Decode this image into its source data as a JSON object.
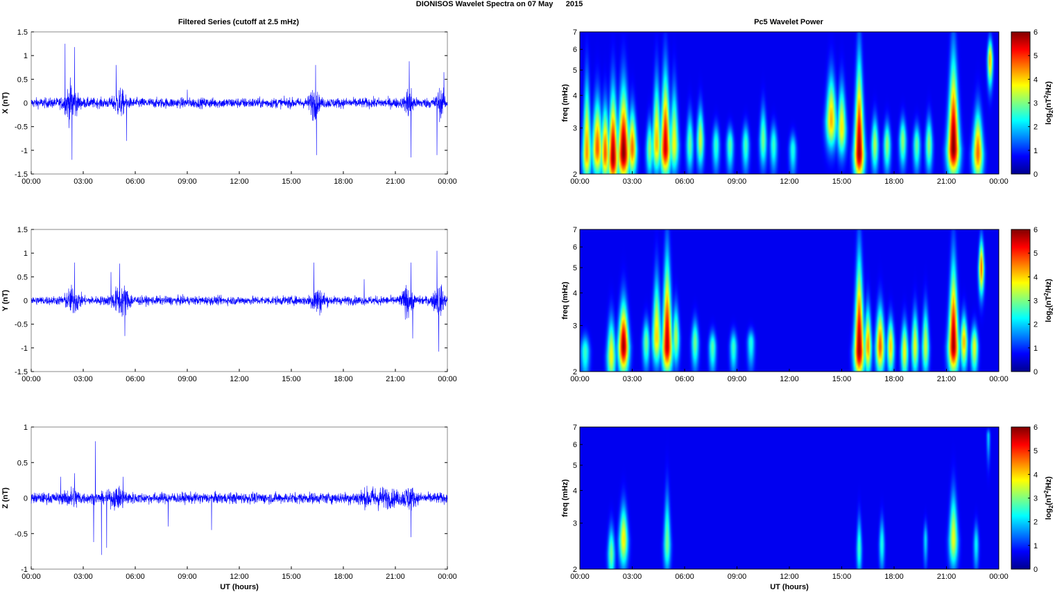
{
  "figure": {
    "suptitle": "DIONISOS Wavelet Spectra on 07 May      2015",
    "left_title": "Filtered Series (cutoff at 2.5 mHz)",
    "right_title": "Pc5 Wavelet Power",
    "xlabel": "UT (hours)"
  },
  "colors": {
    "trace": "#0000ff",
    "axes": "#888888",
    "background": "#ffffff",
    "spectrum_background": "#00008f"
  },
  "colormap": "jet",
  "chart_data": [
    {
      "type": "line",
      "panel": "X",
      "ylabel": "X (nT)",
      "ylim": [
        -1.5,
        1.5
      ],
      "yticks": [
        "1.5",
        "1",
        "0.5",
        "0",
        "-0.5",
        "-1",
        "-1.5"
      ],
      "x_ticks": [
        "00:00",
        "03:00",
        "06:00",
        "09:00",
        "12:00",
        "15:00",
        "18:00",
        "21:00",
        "00:00"
      ],
      "x_range_hours": [
        0,
        24
      ],
      "series": [
        {
          "noise_amplitude_nT": 0.14,
          "bursts": [
            {
              "t": 2.3,
              "width": 0.35,
              "amp": 0.45
            },
            {
              "t": 5.1,
              "width": 0.3,
              "amp": 0.3
            },
            {
              "t": 16.3,
              "width": 0.25,
              "amp": 0.35
            },
            {
              "t": 21.8,
              "width": 0.2,
              "amp": 0.45
            },
            {
              "t": 23.6,
              "width": 0.25,
              "amp": 0.3
            }
          ],
          "spikes": [
            {
              "t": 1.95,
              "v": 1.25
            },
            {
              "t": 2.5,
              "v": 1.18
            },
            {
              "t": 2.35,
              "v": -1.2
            },
            {
              "t": 4.9,
              "v": 0.8
            },
            {
              "t": 5.5,
              "v": -0.8
            },
            {
              "t": 16.4,
              "v": 0.8
            },
            {
              "t": 16.45,
              "v": -1.1
            },
            {
              "t": 21.8,
              "v": 0.88
            },
            {
              "t": 21.9,
              "v": -1.15
            },
            {
              "t": 23.4,
              "v": -1.1
            },
            {
              "t": 23.8,
              "v": 0.65
            },
            {
              "t": 9.0,
              "v": 0.28
            }
          ]
        }
      ]
    },
    {
      "type": "heatmap",
      "panel": "X",
      "ylabel": "freq (mHz)",
      "yscale": "log",
      "ylim": [
        2,
        7
      ],
      "yticks": [
        "7",
        "6",
        "5",
        "4",
        "3",
        "2"
      ],
      "x_ticks": [
        "00:00",
        "03:00",
        "06:00",
        "09:00",
        "12:00",
        "15:00",
        "18:00",
        "21:00",
        "00:00"
      ],
      "colorbar": {
        "label": "log2(nT^2/Hz)",
        "ticks": [
          "6",
          "5",
          "4",
          "3",
          "2",
          "1",
          "0"
        ],
        "range": [
          0,
          6
        ]
      },
      "blobs": [
        {
          "t": 0.4,
          "f": 2.4,
          "dt": 0.25,
          "top": 5.5,
          "v": 4.2
        },
        {
          "t": 1.0,
          "f": 2.5,
          "dt": 0.3,
          "top": 4.5,
          "v": 4.6
        },
        {
          "t": 1.45,
          "f": 2.4,
          "dt": 0.25,
          "top": 4.2,
          "v": 4.6
        },
        {
          "t": 1.9,
          "f": 2.3,
          "dt": 0.3,
          "top": 5.0,
          "v": 5.8
        },
        {
          "t": 2.5,
          "f": 2.4,
          "dt": 0.35,
          "top": 5.2,
          "v": 6.0
        },
        {
          "t": 3.0,
          "f": 2.5,
          "dt": 0.25,
          "top": 4.0,
          "v": 4.5
        },
        {
          "t": 4.0,
          "f": 2.5,
          "dt": 0.2,
          "top": 3.5,
          "v": 2.8
        },
        {
          "t": 4.4,
          "f": 2.6,
          "dt": 0.25,
          "top": 5.5,
          "v": 4.0
        },
        {
          "t": 4.9,
          "f": 2.5,
          "dt": 0.3,
          "top": 6.0,
          "v": 5.5
        },
        {
          "t": 5.4,
          "f": 2.6,
          "dt": 0.25,
          "top": 5.0,
          "v": 3.5
        },
        {
          "t": 6.3,
          "f": 2.6,
          "dt": 0.2,
          "top": 3.8,
          "v": 2.5
        },
        {
          "t": 6.9,
          "f": 2.7,
          "dt": 0.2,
          "top": 4.0,
          "v": 3.2
        },
        {
          "t": 7.8,
          "f": 2.6,
          "dt": 0.2,
          "top": 3.3,
          "v": 2.2
        },
        {
          "t": 8.6,
          "f": 2.6,
          "dt": 0.2,
          "top": 3.2,
          "v": 2.4
        },
        {
          "t": 9.5,
          "f": 2.6,
          "dt": 0.2,
          "top": 3.3,
          "v": 2.3
        },
        {
          "t": 10.5,
          "f": 2.7,
          "dt": 0.2,
          "top": 4.0,
          "v": 2.6
        },
        {
          "t": 11.1,
          "f": 2.6,
          "dt": 0.2,
          "top": 3.3,
          "v": 2.2
        },
        {
          "t": 12.2,
          "f": 2.5,
          "dt": 0.2,
          "top": 3.0,
          "v": 2.0
        },
        {
          "t": 14.4,
          "f": 3.2,
          "dt": 0.3,
          "top": 5.5,
          "v": 4.0
        },
        {
          "t": 15.0,
          "f": 3.0,
          "dt": 0.25,
          "top": 5.0,
          "v": 3.6
        },
        {
          "t": 16.0,
          "f": 2.4,
          "dt": 0.3,
          "top": 7.0,
          "v": 5.8
        },
        {
          "t": 16.9,
          "f": 2.6,
          "dt": 0.2,
          "top": 3.6,
          "v": 3.0
        },
        {
          "t": 17.6,
          "f": 2.6,
          "dt": 0.2,
          "top": 3.4,
          "v": 2.8
        },
        {
          "t": 18.5,
          "f": 2.7,
          "dt": 0.2,
          "top": 3.5,
          "v": 2.8
        },
        {
          "t": 19.3,
          "f": 2.6,
          "dt": 0.2,
          "top": 3.3,
          "v": 2.5
        },
        {
          "t": 20.0,
          "f": 2.6,
          "dt": 0.2,
          "top": 3.6,
          "v": 2.8
        },
        {
          "t": 21.4,
          "f": 2.5,
          "dt": 0.35,
          "top": 7.0,
          "v": 6.0
        },
        {
          "t": 22.8,
          "f": 2.4,
          "dt": 0.3,
          "top": 4.0,
          "v": 4.5
        },
        {
          "t": 23.5,
          "f": 5.5,
          "dt": 0.15,
          "top": 7.0,
          "v": 4.0
        }
      ]
    },
    {
      "type": "line",
      "panel": "Y",
      "ylabel": "Y (nT)",
      "ylim": [
        -1.5,
        1.5
      ],
      "yticks": [
        "1.5",
        "1",
        "0.5",
        "0",
        "-0.5",
        "-1",
        "-1.5"
      ],
      "x_ticks": [
        "00:00",
        "03:00",
        "06:00",
        "09:00",
        "12:00",
        "15:00",
        "18:00",
        "21:00",
        "00:00"
      ],
      "x_range_hours": [
        0,
        24
      ],
      "series": [
        {
          "noise_amplitude_nT": 0.12,
          "bursts": [
            {
              "t": 2.4,
              "width": 0.4,
              "amp": 0.3
            },
            {
              "t": 5.2,
              "width": 0.5,
              "amp": 0.35
            },
            {
              "t": 16.5,
              "width": 0.4,
              "amp": 0.3
            },
            {
              "t": 21.7,
              "width": 0.3,
              "amp": 0.35
            },
            {
              "t": 23.5,
              "width": 0.3,
              "amp": 0.35
            }
          ],
          "spikes": [
            {
              "t": 2.5,
              "v": 0.8
            },
            {
              "t": 5.1,
              "v": 0.78
            },
            {
              "t": 5.4,
              "v": -0.75
            },
            {
              "t": 16.3,
              "v": 0.8
            },
            {
              "t": 21.9,
              "v": 0.8
            },
            {
              "t": 22.0,
              "v": -0.8
            },
            {
              "t": 23.4,
              "v": 1.05
            },
            {
              "t": 23.5,
              "v": -1.08
            },
            {
              "t": 4.6,
              "v": 0.6
            },
            {
              "t": 19.2,
              "v": 0.45
            }
          ]
        }
      ]
    },
    {
      "type": "heatmap",
      "panel": "Y",
      "ylabel": "freq (mHz)",
      "yscale": "log",
      "ylim": [
        2,
        7
      ],
      "yticks": [
        "7",
        "6",
        "5",
        "4",
        "3",
        "2"
      ],
      "x_ticks": [
        "00:00",
        "03:00",
        "06:00",
        "09:00",
        "12:00",
        "15:00",
        "18:00",
        "21:00",
        "00:00"
      ],
      "colorbar": {
        "label": "log2(nT^2/Hz)",
        "ticks": [
          "6",
          "5",
          "4",
          "3",
          "2",
          "1",
          "0"
        ],
        "range": [
          0,
          6
        ]
      },
      "blobs": [
        {
          "t": 0.3,
          "f": 2.4,
          "dt": 0.25,
          "top": 2.9,
          "v": 2.2
        },
        {
          "t": 1.8,
          "f": 2.3,
          "dt": 0.25,
          "top": 3.6,
          "v": 3.5
        },
        {
          "t": 2.5,
          "f": 2.5,
          "dt": 0.3,
          "top": 4.2,
          "v": 5.8
        },
        {
          "t": 3.8,
          "f": 2.6,
          "dt": 0.2,
          "top": 3.4,
          "v": 2.6
        },
        {
          "t": 4.4,
          "f": 2.7,
          "dt": 0.25,
          "top": 5.5,
          "v": 3.8
        },
        {
          "t": 5.0,
          "f": 2.5,
          "dt": 0.3,
          "top": 7.0,
          "v": 5.6
        },
        {
          "t": 5.5,
          "f": 2.7,
          "dt": 0.2,
          "top": 4.0,
          "v": 3.0
        },
        {
          "t": 6.6,
          "f": 2.6,
          "dt": 0.2,
          "top": 3.4,
          "v": 2.6
        },
        {
          "t": 7.6,
          "f": 2.5,
          "dt": 0.2,
          "top": 3.0,
          "v": 2.4
        },
        {
          "t": 8.8,
          "f": 2.5,
          "dt": 0.2,
          "top": 3.0,
          "v": 2.2
        },
        {
          "t": 9.8,
          "f": 2.6,
          "dt": 0.2,
          "top": 3.0,
          "v": 2.0
        },
        {
          "t": 16.0,
          "f": 2.4,
          "dt": 0.3,
          "top": 7.0,
          "v": 5.8
        },
        {
          "t": 16.5,
          "f": 2.5,
          "dt": 0.2,
          "top": 4.0,
          "v": 4.2
        },
        {
          "t": 17.2,
          "f": 2.5,
          "dt": 0.25,
          "top": 4.0,
          "v": 4.6
        },
        {
          "t": 17.8,
          "f": 2.5,
          "dt": 0.2,
          "top": 3.5,
          "v": 3.8
        },
        {
          "t": 18.6,
          "f": 2.4,
          "dt": 0.2,
          "top": 3.4,
          "v": 3.5
        },
        {
          "t": 19.2,
          "f": 2.5,
          "dt": 0.2,
          "top": 3.8,
          "v": 3.4
        },
        {
          "t": 19.8,
          "f": 2.5,
          "dt": 0.2,
          "top": 4.0,
          "v": 3.2
        },
        {
          "t": 21.4,
          "f": 2.5,
          "dt": 0.3,
          "top": 6.5,
          "v": 5.8
        },
        {
          "t": 22.0,
          "f": 2.6,
          "dt": 0.2,
          "top": 3.6,
          "v": 4.0
        },
        {
          "t": 22.6,
          "f": 2.5,
          "dt": 0.2,
          "top": 3.2,
          "v": 3.4
        },
        {
          "t": 23.0,
          "f": 5.0,
          "dt": 0.15,
          "top": 7.0,
          "v": 4.5
        }
      ]
    },
    {
      "type": "line",
      "panel": "Z",
      "ylabel": "Z (nT)",
      "ylim": [
        -1,
        1
      ],
      "yticks": [
        "1",
        "0.5",
        "0",
        "-0.5",
        "-1"
      ],
      "x_ticks": [
        "00:00",
        "03:00",
        "06:00",
        "09:00",
        "12:00",
        "15:00",
        "18:00",
        "21:00",
        "00:00"
      ],
      "x_range_hours": [
        0,
        24
      ],
      "series": [
        {
          "noise_amplitude_nT": 0.1,
          "bursts": [
            {
              "t": 2.4,
              "width": 0.4,
              "amp": 0.12
            },
            {
              "t": 5.0,
              "width": 0.5,
              "amp": 0.12
            },
            {
              "t": 20.0,
              "width": 1.2,
              "amp": 0.12
            },
            {
              "t": 21.8,
              "width": 0.3,
              "amp": 0.15
            }
          ],
          "spikes": [
            {
              "t": 3.7,
              "v": 0.8
            },
            {
              "t": 3.6,
              "v": -0.62
            },
            {
              "t": 4.05,
              "v": -0.8
            },
            {
              "t": 4.35,
              "v": -0.7
            },
            {
              "t": 5.3,
              "v": 0.3
            },
            {
              "t": 10.4,
              "v": -0.45
            },
            {
              "t": 21.9,
              "v": -0.55
            },
            {
              "t": 2.5,
              "v": 0.35
            },
            {
              "t": 1.7,
              "v": 0.3
            },
            {
              "t": 7.9,
              "v": -0.4
            }
          ]
        }
      ]
    },
    {
      "type": "heatmap",
      "panel": "Z",
      "ylabel": "freq (mHz)",
      "yscale": "log",
      "ylim": [
        2,
        7
      ],
      "yticks": [
        "7",
        "6",
        "5",
        "4",
        "3",
        "2"
      ],
      "x_ticks": [
        "00:00",
        "03:00",
        "06:00",
        "09:00",
        "12:00",
        "15:00",
        "18:00",
        "21:00",
        "00:00"
      ],
      "colorbar": {
        "label": "log2(nT^2/Hz)",
        "ticks": [
          "6",
          "5",
          "4",
          "3",
          "2",
          "1",
          "0"
        ],
        "range": [
          0,
          6
        ]
      },
      "blobs": [
        {
          "t": 1.8,
          "f": 2.3,
          "dt": 0.2,
          "top": 3.2,
          "v": 2.6
        },
        {
          "t": 2.5,
          "f": 2.6,
          "dt": 0.25,
          "top": 3.9,
          "v": 3.6
        },
        {
          "t": 5.0,
          "f": 2.5,
          "dt": 0.2,
          "top": 4.6,
          "v": 2.6
        },
        {
          "t": 16.0,
          "f": 2.4,
          "dt": 0.15,
          "top": 3.5,
          "v": 2.2
        },
        {
          "t": 17.3,
          "f": 2.5,
          "dt": 0.15,
          "top": 3.4,
          "v": 2.0
        },
        {
          "t": 19.8,
          "f": 2.6,
          "dt": 0.12,
          "top": 3.2,
          "v": 1.6
        },
        {
          "t": 21.4,
          "f": 2.6,
          "dt": 0.25,
          "top": 4.5,
          "v": 3.4
        },
        {
          "t": 22.7,
          "f": 2.5,
          "dt": 0.15,
          "top": 3.2,
          "v": 1.8
        },
        {
          "t": 23.4,
          "f": 6.5,
          "dt": 0.1,
          "top": 7.0,
          "v": 1.5
        }
      ]
    }
  ]
}
